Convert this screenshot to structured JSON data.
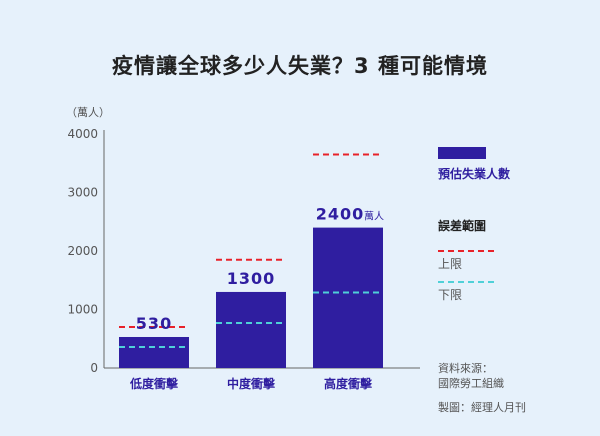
{
  "title": "疫情讓全球多少人失業？3 種可能情境",
  "chart_data": {
    "type": "bar",
    "ylabel": "（萬人）",
    "ylim": [
      0,
      4000
    ],
    "yticks": [
      0,
      1000,
      2000,
      3000,
      4000
    ],
    "grid": false,
    "categories": [
      "低度衝擊",
      "中度衝擊",
      "高度衝擊"
    ],
    "series": [
      {
        "name": "預估失業人數",
        "values": [
          530,
          1300,
          2400
        ],
        "data_labels": [
          "530",
          "1300",
          "2400"
        ]
      }
    ],
    "error_range": {
      "name": "誤差範圍",
      "upper_name": "上限",
      "lower_name": "下限",
      "upper": [
        700,
        1850,
        3650
      ],
      "lower": [
        360,
        770,
        1290
      ]
    },
    "value_unit_note": "萬人",
    "legend_position": "right"
  },
  "colors": {
    "bar": "#2f1ea0",
    "upper": "#e8222a",
    "lower": "#4fd0d8",
    "background": "#e6f1fb"
  },
  "footer": {
    "source_label": "資料來源：",
    "source": "國際勞工組織",
    "made_by": "製圖：經理人月刊"
  }
}
